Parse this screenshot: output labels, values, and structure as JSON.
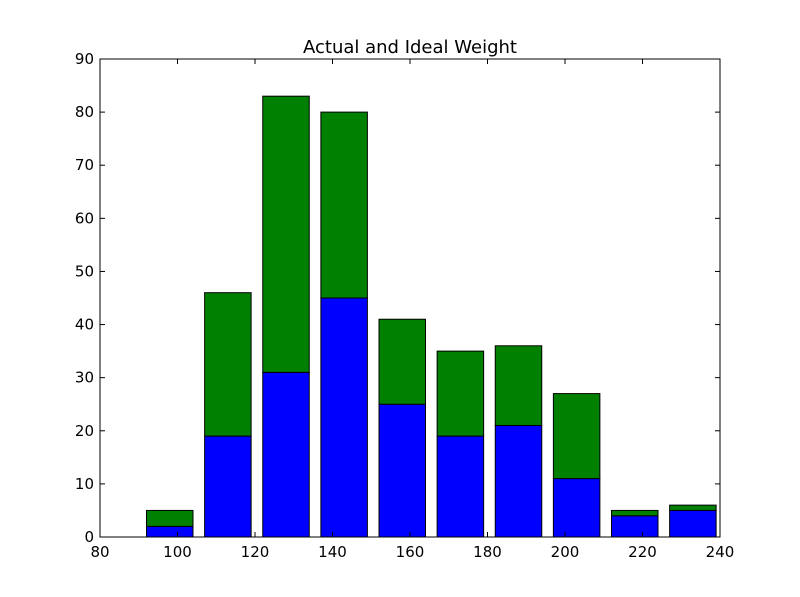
{
  "chart_data": {
    "type": "bar",
    "stacked": true,
    "title": "Actual and Ideal Weight",
    "xlabel": "",
    "ylabel": "",
    "xlim": [
      80,
      240
    ],
    "ylim": [
      0,
      90
    ],
    "x_ticks": [
      80,
      100,
      120,
      140,
      160,
      180,
      200,
      220,
      240
    ],
    "y_ticks": [
      0,
      10,
      20,
      30,
      40,
      50,
      60,
      70,
      80,
      90
    ],
    "bar_width": 12,
    "x": [
      92,
      107,
      122,
      137,
      152,
      167,
      182,
      197,
      212,
      227
    ],
    "series": [
      {
        "color": "#0000ff",
        "values": [
          2,
          19,
          31,
          45,
          25,
          19,
          21,
          11,
          4,
          5
        ]
      },
      {
        "color": "#008000",
        "values": [
          3,
          27,
          52,
          35,
          16,
          16,
          15,
          16,
          1,
          1
        ]
      }
    ],
    "grid": false,
    "legend": "none"
  }
}
